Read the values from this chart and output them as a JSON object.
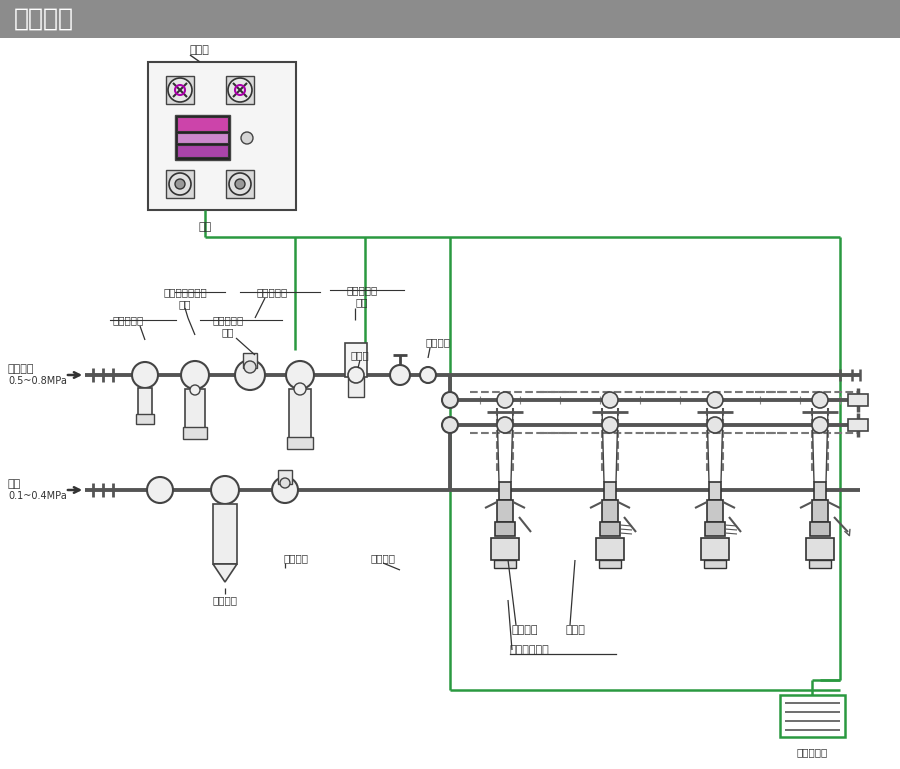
{
  "title": "组成系统",
  "title_bg": "#8c8c8c",
  "title_fg": "#ffffff",
  "bg": "#efefef",
  "white": "#ffffff",
  "dark": "#333333",
  "green": "#2a9940",
  "pipe": "#555555",
  "dashed": "#777777",
  "light": "#e8e8e8",
  "mid": "#cccccc",
  "magenta": "#cc44aa",
  "pink": "#f0a0cc",
  "labels": {
    "title": "组成系统",
    "ctrl": "控制柜",
    "power": "电源",
    "ultra_sep": "超微油雾分离器",
    "option": "选配",
    "air_reg": "空气调压阀",
    "exhaust": "排气电磁阀",
    "air_filt": "空气过滤器",
    "oil_sep": "油雾分离器",
    "solenoid": "电磁阀",
    "air_main": "供气总管",
    "comp_air1": "压缩空气",
    "comp_air2": "0.5~0.8MPa",
    "pure_w1": "纯水",
    "pure_w2": "0.1~0.4MPa",
    "w_filter": "水过滤器",
    "w_reg": "水调压阀",
    "w_main": "供水总管",
    "mount": "吊装组件",
    "nylon": "尼龙管",
    "dry_mist": "干雾加湿单元",
    "humidity": "湿度传感器"
  }
}
